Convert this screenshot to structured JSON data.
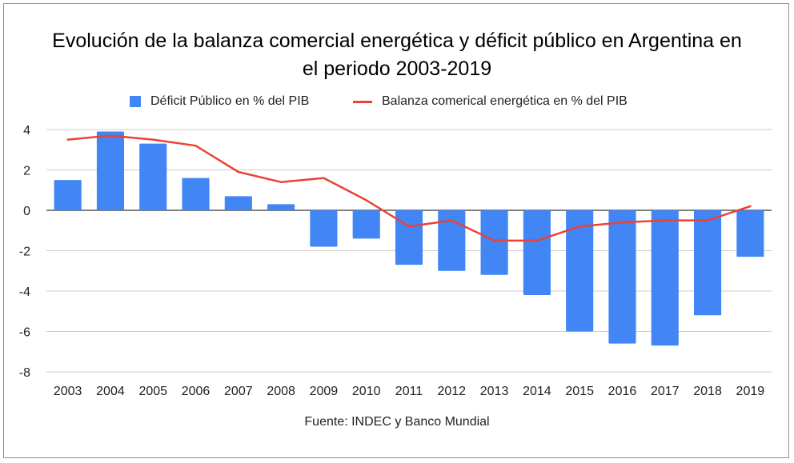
{
  "chart_data": {
    "type": "bar",
    "title_line1": "Evolución de la balanza comercial energética y déficit público en Argentina en",
    "title_line2": "el periodo 2003-2019",
    "categories": [
      "2003",
      "2004",
      "2005",
      "2006",
      "2007",
      "2008",
      "2009",
      "2010",
      "2011",
      "2012",
      "2013",
      "2014",
      "2015",
      "2016",
      "2017",
      "2018",
      "2019"
    ],
    "series": [
      {
        "name": "Déficit Público en % del PIB",
        "type": "bar",
        "color": "#4285f4",
        "values": [
          1.5,
          3.9,
          3.3,
          1.6,
          0.7,
          0.3,
          -1.8,
          -1.4,
          -2.7,
          -3.0,
          -3.2,
          -4.2,
          -6.0,
          -6.6,
          -6.7,
          -5.2,
          -2.3
        ]
      },
      {
        "name": "Balanza comerical energética en % del PIB",
        "type": "line",
        "color": "#ea4335",
        "values": [
          3.5,
          3.7,
          3.5,
          3.2,
          1.9,
          1.4,
          1.6,
          0.5,
          -0.8,
          -0.5,
          -1.5,
          -1.5,
          -0.8,
          -0.6,
          -0.5,
          -0.5,
          0.2
        ]
      }
    ],
    "yticks": [
      "4",
      "2",
      "0",
      "-2",
      "-4",
      "-6",
      "-8"
    ],
    "ytick_values": [
      4,
      2,
      0,
      -2,
      -4,
      -6,
      -8
    ],
    "ylim": [
      -8,
      4
    ],
    "grid": true,
    "legend_position": "top",
    "source": "Fuente: INDEC y Banco Mundial"
  }
}
